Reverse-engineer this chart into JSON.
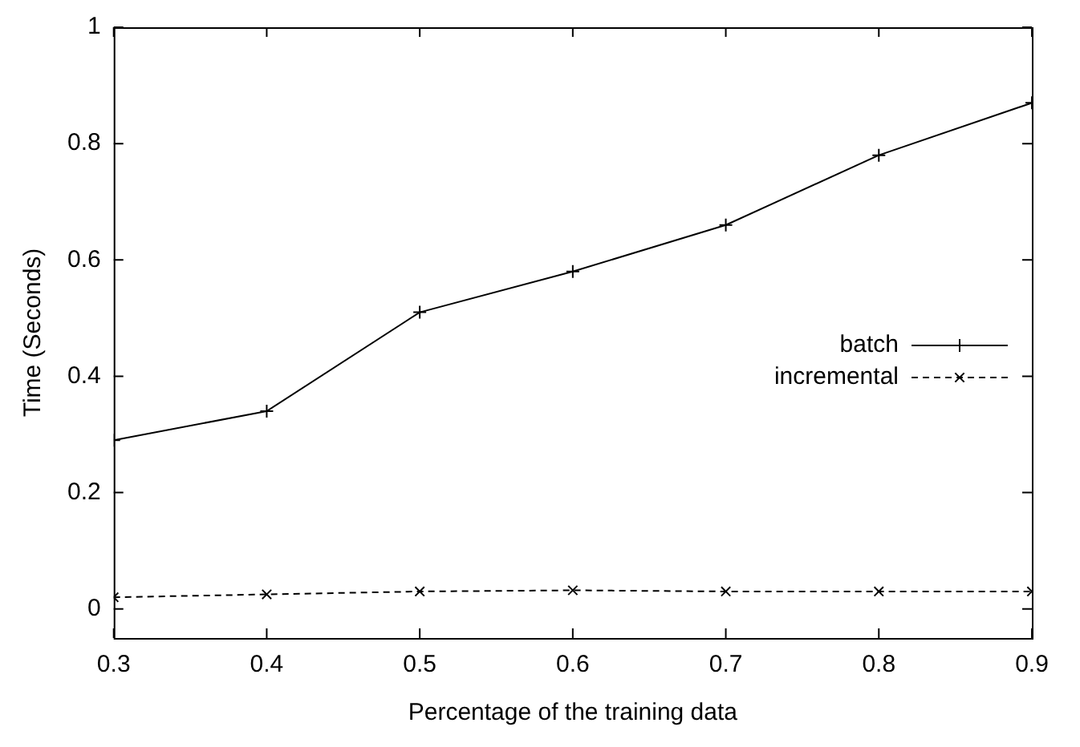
{
  "chart_data": {
    "type": "line",
    "xlabel": "Percentage of the training data",
    "ylabel": "Time (Seconds)",
    "x": [
      0.3,
      0.4,
      0.5,
      0.6,
      0.7,
      0.8,
      0.9
    ],
    "series": [
      {
        "name": "batch",
        "color": "#000000",
        "values": [
          0.29,
          0.34,
          0.51,
          0.58,
          0.66,
          0.78,
          0.87
        ],
        "marker": "cross",
        "line_style": "solid"
      },
      {
        "name": "incremental",
        "color": "#000000",
        "values": [
          0.02,
          0.025,
          0.03,
          0.032,
          0.03,
          0.03,
          0.03
        ],
        "marker": "x",
        "line_style": "dashed"
      }
    ],
    "xlim": [
      0.3,
      0.9
    ],
    "xticks": [
      0.3,
      0.4,
      0.5,
      0.6,
      0.7,
      0.8,
      0.9
    ],
    "ylim": [
      -0.05,
      1
    ],
    "yticks": [
      0,
      0.2,
      0.4,
      0.6,
      0.8,
      1
    ],
    "grid": false,
    "legend": "right"
  }
}
